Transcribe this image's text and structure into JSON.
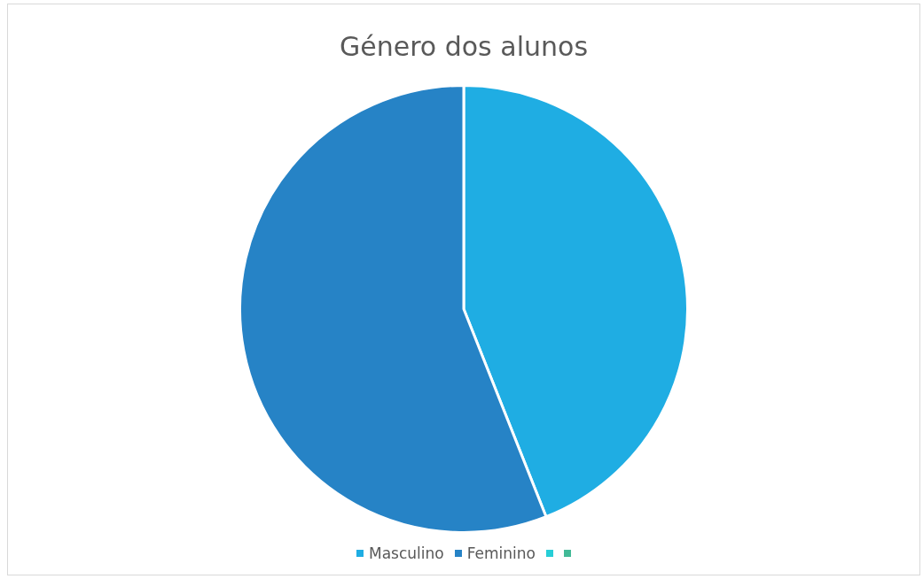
{
  "chart_data": {
    "type": "pie",
    "title": "Género dos alunos",
    "categories": [
      "Masculino",
      "Feminino",
      null,
      null
    ],
    "values": [
      44,
      56,
      0,
      0
    ],
    "colors": [
      "#1fade3",
      "#2683c6",
      "#27ced7",
      "#42ba97"
    ],
    "legend": "bottom"
  }
}
